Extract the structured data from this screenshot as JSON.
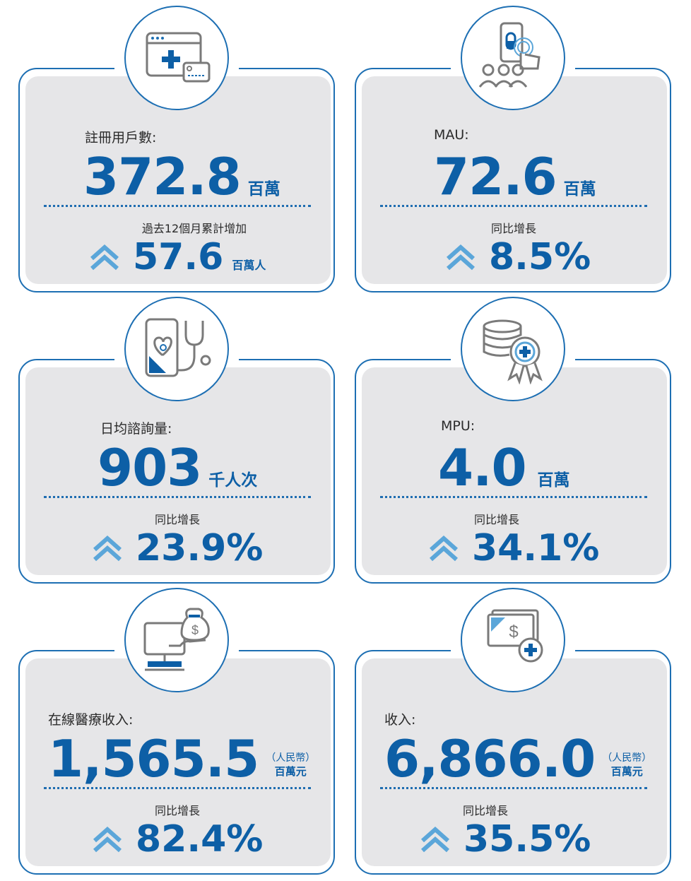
{
  "cards": [
    {
      "label": "註冊用戶數:",
      "value": "372.8",
      "unit": "百萬",
      "sub_label": "過去12個月累計增加",
      "growth": "57.6",
      "growth_unit": "百萬人",
      "icon": "browser-medical-card-icon"
    },
    {
      "label": "MAU:",
      "value": "72.6",
      "unit": "百萬",
      "sub_label": "同比增長",
      "growth": "8.5%",
      "growth_unit": "",
      "icon": "phone-tap-users-icon"
    },
    {
      "label": "日均諮詢量:",
      "value": "903",
      "unit": "千人次",
      "sub_label": "同比增長",
      "growth": "23.9%",
      "growth_unit": "",
      "icon": "phone-stethoscope-icon"
    },
    {
      "label": "MPU:",
      "value": "4.0",
      "unit": "百萬",
      "sub_label": "同比增長",
      "growth": "34.1%",
      "growth_unit": "",
      "icon": "database-badge-icon"
    },
    {
      "label": "在線醫療收入:",
      "value": "1,565.5",
      "unit_line1": "（人民幣）",
      "unit_line2": "百萬元",
      "sub_label": "同比增長",
      "growth": "82.4%",
      "growth_unit": "",
      "icon": "computer-money-bag-icon"
    },
    {
      "label": "收入:",
      "value": "6,866.0",
      "unit_line1": "（人民幣）",
      "unit_line2": "百萬元",
      "sub_label": "同比增長",
      "growth": "35.5%",
      "growth_unit": "",
      "icon": "cash-plus-icon"
    }
  ],
  "colors": {
    "brand": "#0d5fa6",
    "border": "#1d6fb3",
    "accent": "#5ba6d9",
    "panel": "#e6e6e8"
  }
}
